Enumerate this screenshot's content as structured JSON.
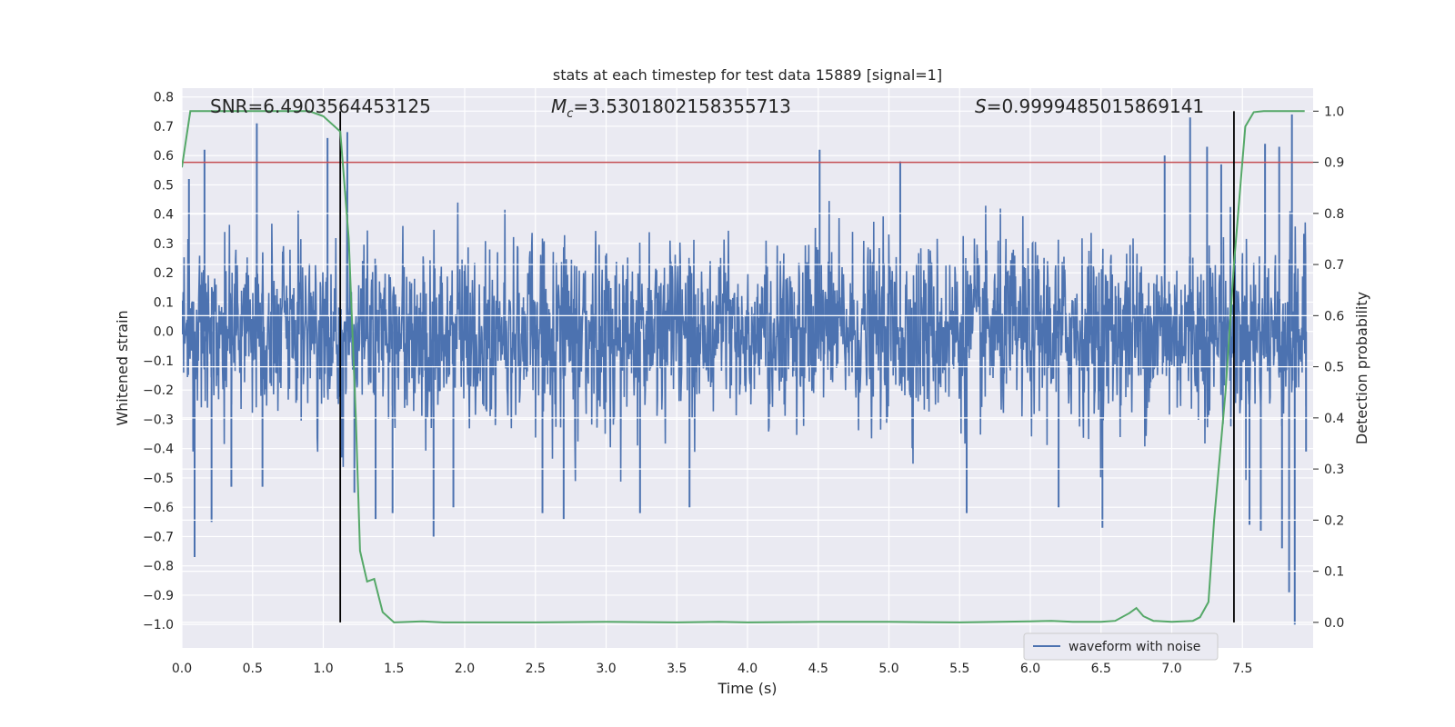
{
  "chart_data": {
    "type": "line",
    "title": "stats at each timestep for test data 15889 [signal=1]",
    "xlabel": "Time (s)",
    "ylabel": "Whitened strain",
    "y2label": "Detection probability",
    "xlim": [
      0.0,
      8.0
    ],
    "ylim": [
      -1.08,
      0.83
    ],
    "y2lim": [
      -0.05,
      1.045
    ],
    "x_ticks": [
      0.0,
      0.5,
      1.0,
      1.5,
      2.0,
      2.5,
      3.0,
      3.5,
      4.0,
      4.5,
      5.0,
      5.5,
      6.0,
      6.5,
      7.0,
      7.5
    ],
    "x_tick_labels": [
      "0.0",
      "0.5",
      "1.0",
      "1.5",
      "2.0",
      "2.5",
      "3.0",
      "3.5",
      "4.0",
      "4.5",
      "5.0",
      "5.5",
      "6.0",
      "6.5",
      "7.0",
      "7.5"
    ],
    "y_ticks": [
      0.8,
      0.7,
      0.6,
      0.5,
      0.4,
      0.3,
      0.2,
      0.1,
      0.0,
      -0.1,
      -0.2,
      -0.3,
      -0.4,
      -0.5,
      -0.6,
      -0.7,
      -0.8,
      -0.9,
      -1.0
    ],
    "y_tick_labels": [
      "0.8",
      "0.7",
      "0.6",
      "0.5",
      "0.4",
      "0.3",
      "0.2",
      "0.1",
      "0.0",
      "−0.1",
      "−0.2",
      "−0.3",
      "−0.4",
      "−0.5",
      "−0.6",
      "−0.7",
      "−0.8",
      "−0.9",
      "−1.0"
    ],
    "y2_ticks": [
      1.0,
      0.9,
      0.8,
      0.7,
      0.6,
      0.5,
      0.4,
      0.3,
      0.2,
      0.1,
      0.0
    ],
    "y2_tick_labels": [
      "1.0",
      "0.9",
      "0.8",
      "0.7",
      "0.6",
      "0.5",
      "0.4",
      "0.3",
      "0.2",
      "0.1",
      "0.0"
    ],
    "grid": true,
    "legend_placement": "lower-right",
    "annotations": {
      "snr": "SNR=6.4903564453125",
      "mc_symbol": "M",
      "mc_subscript": "c",
      "mc_value": "=3.5301802158355713",
      "s_symbol": "S",
      "s_value": "=0.9999485015869141"
    },
    "threshold": {
      "y2": 0.9,
      "color": "#c44e52"
    },
    "vertical_markers": {
      "x": [
        1.12,
        7.44
      ],
      "color": "#000000"
    },
    "series": [
      {
        "name": "waveform with noise",
        "axis": "left",
        "color": "#4c72b0",
        "envelope_typical": 0.3,
        "peak_spikes": [
          {
            "x": 0.05,
            "y": 0.52
          },
          {
            "x": 0.08,
            "y": -0.41
          },
          {
            "x": 0.09,
            "y": -0.77
          },
          {
            "x": 0.16,
            "y": 0.62
          },
          {
            "x": 0.21,
            "y": -0.65
          },
          {
            "x": 0.35,
            "y": -0.53
          },
          {
            "x": 0.53,
            "y": 0.71
          },
          {
            "x": 0.57,
            "y": -0.53
          },
          {
            "x": 1.03,
            "y": 0.66
          },
          {
            "x": 1.13,
            "y": -0.43
          },
          {
            "x": 1.17,
            "y": 0.68
          },
          {
            "x": 1.22,
            "y": -0.55
          },
          {
            "x": 1.37,
            "y": -0.64
          },
          {
            "x": 1.49,
            "y": -0.62
          },
          {
            "x": 1.78,
            "y": -0.7
          },
          {
            "x": 1.92,
            "y": -0.6
          },
          {
            "x": 2.55,
            "y": -0.62
          },
          {
            "x": 2.7,
            "y": -0.64
          },
          {
            "x": 3.24,
            "y": -0.62
          },
          {
            "x": 3.59,
            "y": -0.6
          },
          {
            "x": 4.51,
            "y": 0.62
          },
          {
            "x": 5.08,
            "y": 0.58
          },
          {
            "x": 5.55,
            "y": -0.62
          },
          {
            "x": 6.2,
            "y": -0.6
          },
          {
            "x": 6.51,
            "y": -0.67
          },
          {
            "x": 6.95,
            "y": 0.6
          },
          {
            "x": 7.13,
            "y": 0.73
          },
          {
            "x": 7.25,
            "y": 0.63
          },
          {
            "x": 7.35,
            "y": 0.57
          },
          {
            "x": 7.55,
            "y": -0.66
          },
          {
            "x": 7.63,
            "y": -0.68
          },
          {
            "x": 7.66,
            "y": 0.64
          },
          {
            "x": 7.76,
            "y": 0.63
          },
          {
            "x": 7.78,
            "y": -0.74
          },
          {
            "x": 7.83,
            "y": -0.89
          },
          {
            "x": 7.85,
            "y": 0.74
          },
          {
            "x": 7.87,
            "y": -1.0
          },
          {
            "x": 7.95,
            "y": -0.41
          }
        ]
      },
      {
        "name": "",
        "axis": "right",
        "color": "#55a868",
        "x": [
          0.0,
          0.06,
          0.2,
          0.5,
          0.9,
          1.0,
          1.12,
          1.18,
          1.23,
          1.26,
          1.31,
          1.36,
          1.42,
          1.5,
          1.7,
          1.85,
          2.5,
          3.0,
          3.5,
          3.8,
          4.0,
          4.5,
          5.0,
          5.5,
          6.0,
          6.15,
          6.3,
          6.5,
          6.6,
          6.7,
          6.75,
          6.8,
          6.87,
          7.0,
          7.15,
          7.2,
          7.26,
          7.3,
          7.38,
          7.44,
          7.52,
          7.58,
          7.65,
          7.8,
          7.94
        ],
        "y": [
          0.89,
          1.0,
          1.0,
          1.0,
          1.0,
          0.99,
          0.96,
          0.75,
          0.4,
          0.14,
          0.08,
          0.085,
          0.02,
          0.0,
          0.002,
          0.0,
          0.0,
          0.001,
          0.0,
          0.001,
          0.0,
          0.001,
          0.001,
          0.0,
          0.002,
          0.003,
          0.001,
          0.001,
          0.003,
          0.018,
          0.028,
          0.012,
          0.003,
          0.001,
          0.003,
          0.01,
          0.04,
          0.2,
          0.45,
          0.7,
          0.97,
          0.998,
          1.0,
          1.0,
          1.0
        ]
      }
    ]
  }
}
